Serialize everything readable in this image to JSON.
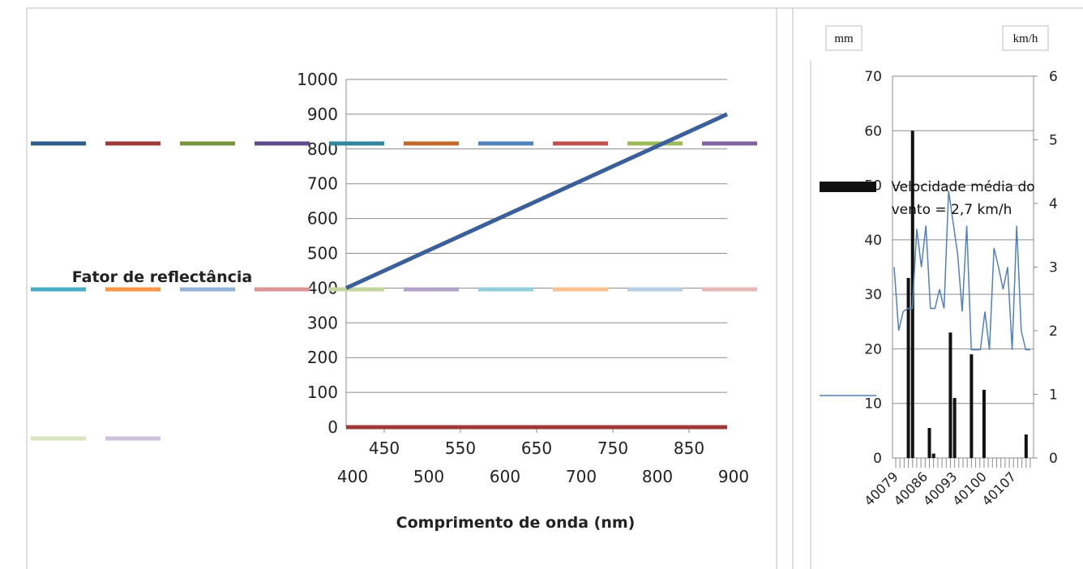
{
  "chart_data": [
    {
      "type": "line",
      "ylabel": "Fator de reflectância",
      "xlabel": "Comprimento de onda (nm)",
      "ylim": [
        0,
        1000
      ],
      "yticks": [
        0,
        100,
        200,
        300,
        400,
        500,
        600,
        700,
        800,
        900,
        1000
      ],
      "xlim": [
        400,
        900
      ],
      "xticks_upper": [
        450,
        550,
        650,
        750,
        850
      ],
      "xticks_lower": [
        400,
        500,
        600,
        700,
        800,
        900
      ],
      "grid": true,
      "series": [
        {
          "color": "#3A5F9A",
          "x": [
            400,
            900
          ],
          "y": [
            400,
            900
          ]
        },
        {
          "color": "#9B3A37",
          "x": [
            400,
            900
          ],
          "y": [
            0,
            0
          ]
        }
      ],
      "legend_entry_colors": [
        "#2E5C8A",
        "#9B3A37",
        "#77933C",
        "#5F4B8B",
        "#31869B",
        "#C0692A",
        "#4F81BD",
        "#C0504D",
        "#9BBB59",
        "#8064A2",
        "#4BACC6",
        "#F79646",
        "#95B3D7",
        "#D99694",
        "#C3D69B",
        "#B3A2C7",
        "#92CDDC",
        "#FAC090",
        "#B9CDE5",
        "#E6B9B8",
        "#D7E4BD",
        "#CCC1DA"
      ]
    },
    {
      "type": "bar",
      "y_left_unit": "mm",
      "y_right_unit": "km/h",
      "ylim_left": [
        0,
        70
      ],
      "yticks_left": [
        0,
        10,
        20,
        30,
        40,
        50,
        60,
        70
      ],
      "ylim_right": [
        0,
        6
      ],
      "yticks_right": [
        0,
        1,
        2,
        3,
        4,
        5,
        6
      ],
      "x_range": [
        40079,
        40111
      ],
      "xtick_labels": [
        "40079",
        "40086",
        "40093",
        "40100",
        "40107"
      ],
      "annotation": "Velocidade média do vento = 2,7 km/h",
      "bar_color": "#111111",
      "line_color": "#4F81BD",
      "bars": [
        {
          "x": 40082,
          "y": 33
        },
        {
          "x": 40083,
          "y": 60
        },
        {
          "x": 40087,
          "y": 5.5
        },
        {
          "x": 40088,
          "y": 0.8
        },
        {
          "x": 40092,
          "y": 23
        },
        {
          "x": 40093,
          "y": 11
        },
        {
          "x": 40097,
          "y": 19
        },
        {
          "x": 40100,
          "y": 12.5
        },
        {
          "x": 40110,
          "y": 4.3
        }
      ],
      "wind_speed": [
        3.0,
        2.0,
        2.3,
        2.35,
        2.35,
        3.6,
        3.0,
        3.65,
        2.35,
        2.35,
        2.65,
        2.35,
        4.2,
        3.7,
        3.2,
        2.3,
        3.65,
        1.7,
        1.7,
        1.7,
        2.3,
        1.7,
        3.3,
        3.0,
        2.65,
        3.0,
        1.7,
        3.65,
        2.0,
        1.7,
        1.7
      ]
    }
  ]
}
